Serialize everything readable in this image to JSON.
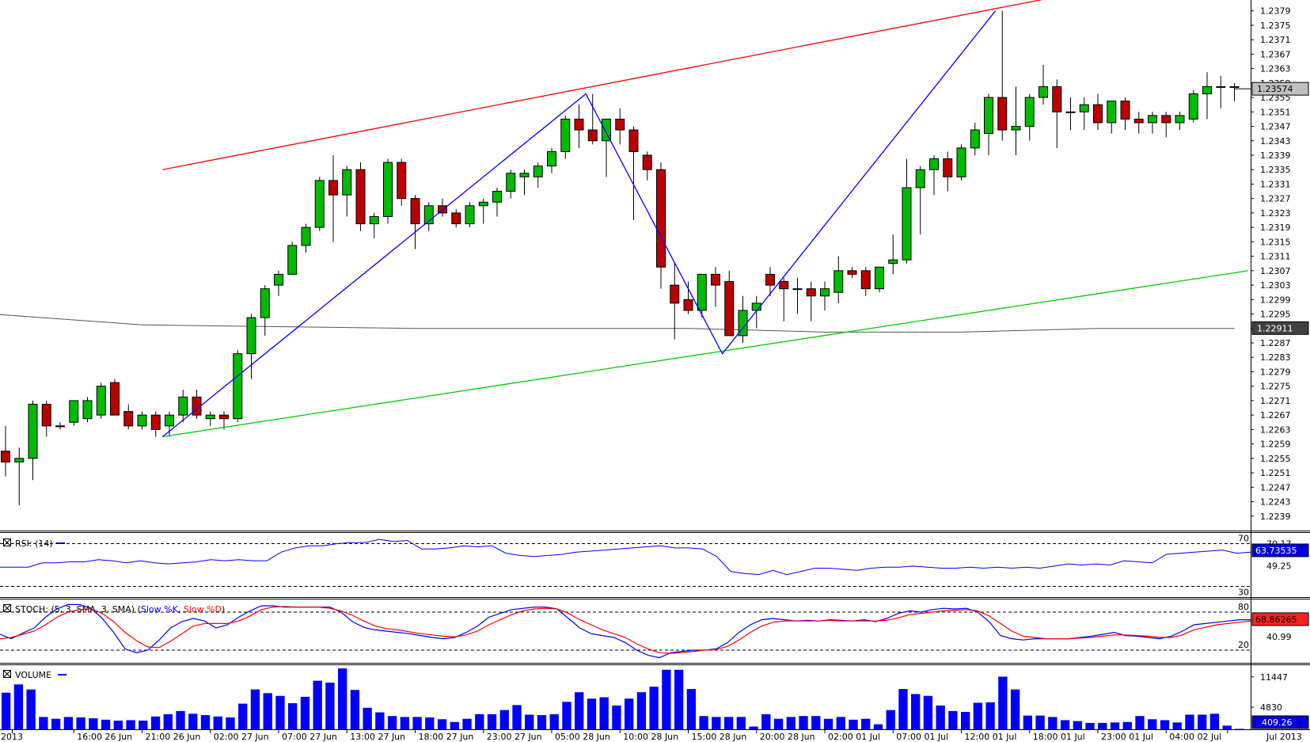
{
  "chart_data": [
    {
      "type": "candlestick",
      "name": "main",
      "ylim": [
        1.2235,
        1.2382
      ],
      "y_ticks": [
        "1.2379",
        "1.2375",
        "1.2371",
        "1.2367",
        "1.2363",
        "1.2359",
        "1.2355",
        "1.2351",
        "1.2347",
        "1.2343",
        "1.2339",
        "1.2335",
        "1.2331",
        "1.2327",
        "1.2323",
        "1.2319",
        "1.2315",
        "1.2311",
        "1.2307",
        "1.2303",
        "1.2299",
        "1.2295",
        "1.2291",
        "1.2287",
        "1.2283",
        "1.2279",
        "1.2275",
        "1.2271",
        "1.2267",
        "1.2263",
        "1.2259",
        "1.2255",
        "1.2251",
        "1.2247",
        "1.2243",
        "1.2239"
      ],
      "x_labels": [
        {
          "i": 0.5,
          "text": "2013"
        },
        {
          "i": 5,
          "text": "16:00 26 Jun"
        },
        {
          "i": 10,
          "text": "21:00 26 Jun"
        },
        {
          "i": 15,
          "text": "02:00 27 Jun"
        },
        {
          "i": 20,
          "text": "07:00 27 Jun"
        },
        {
          "i": 25,
          "text": "13:00 27 Jun"
        },
        {
          "i": 30,
          "text": "18:00 27 Jun"
        },
        {
          "i": 35,
          "text": "23:00 27 Jun"
        },
        {
          "i": 40,
          "text": "05:00 28 Jun"
        },
        {
          "i": 45,
          "text": "10:00 28 Jun"
        },
        {
          "i": 50,
          "text": "15:00 28 Jun"
        },
        {
          "i": 55,
          "text": "20:00 28 Jun"
        },
        {
          "i": 60,
          "text": "02:00 01 Jul"
        },
        {
          "i": 65,
          "text": "07:00 01 Jul"
        },
        {
          "i": 70,
          "text": "12:00 01 Jul"
        },
        {
          "i": 75,
          "text": "18:00 01 Jul"
        },
        {
          "i": 80,
          "text": "23:00 01 Jul"
        },
        {
          "i": 85,
          "text": "04:00 02 Jul"
        },
        {
          "i": 89.5,
          "text": "Jul 2013"
        }
      ],
      "candles": [
        [
          1.2257,
          1.2264,
          1.225,
          1.2254
        ],
        [
          1.2254,
          1.2258,
          1.2242,
          1.2255
        ],
        [
          1.2255,
          1.2271,
          1.2249,
          1.227
        ],
        [
          1.227,
          1.2271,
          1.2261,
          1.2264
        ],
        [
          1.2264,
          1.2265,
          1.2263,
          1.2264
        ],
        [
          1.2265,
          1.2271,
          1.2264,
          1.2271
        ],
        [
          1.2266,
          1.2272,
          1.2265,
          1.2271
        ],
        [
          1.2267,
          1.2276,
          1.2266,
          1.2275
        ],
        [
          1.2276,
          1.2277,
          1.2267,
          1.2267
        ],
        [
          1.2268,
          1.227,
          1.2263,
          1.2264
        ],
        [
          1.2264,
          1.2268,
          1.2263,
          1.2267
        ],
        [
          1.2267,
          1.2268,
          1.2261,
          1.2263
        ],
        [
          1.2264,
          1.2268,
          1.2261,
          1.2267
        ],
        [
          1.2267,
          1.2274,
          1.2265,
          1.2272
        ],
        [
          1.2272,
          1.2274,
          1.2266,
          1.2267
        ],
        [
          1.2266,
          1.2268,
          1.2264,
          1.2267
        ],
        [
          1.2267,
          1.2268,
          1.2263,
          1.2266
        ],
        [
          1.2266,
          1.2285,
          1.2265,
          1.2284
        ],
        [
          1.2284,
          1.2295,
          1.2277,
          1.2294
        ],
        [
          1.2294,
          1.2303,
          1.2289,
          1.2302
        ],
        [
          1.2303,
          1.2307,
          1.23,
          1.2306
        ],
        [
          1.2306,
          1.2315,
          1.2306,
          1.2314
        ],
        [
          1.2314,
          1.232,
          1.2312,
          1.2319
        ],
        [
          1.2319,
          1.2333,
          1.2318,
          1.2332
        ],
        [
          1.2332,
          1.2339,
          1.2315,
          1.2328
        ],
        [
          1.2328,
          1.2336,
          1.2322,
          1.2335
        ],
        [
          1.2335,
          1.2337,
          1.2318,
          1.232
        ],
        [
          1.232,
          1.2323,
          1.2316,
          1.2322
        ],
        [
          1.2322,
          1.2338,
          1.232,
          1.2337
        ],
        [
          1.2337,
          1.2338,
          1.2325,
          1.2327
        ],
        [
          1.2327,
          1.2328,
          1.2313,
          1.232
        ],
        [
          1.232,
          1.2326,
          1.2318,
          1.2325
        ],
        [
          1.2325,
          1.2327,
          1.2322,
          1.2323
        ],
        [
          1.2323,
          1.2324,
          1.2319,
          1.232
        ],
        [
          1.232,
          1.2326,
          1.2319,
          1.2325
        ],
        [
          1.2325,
          1.2327,
          1.232,
          1.2326
        ],
        [
          1.2326,
          1.233,
          1.2322,
          1.2329
        ],
        [
          1.2329,
          1.2335,
          1.2327,
          1.2334
        ],
        [
          1.2333,
          1.2335,
          1.2328,
          1.2334
        ],
        [
          1.2333,
          1.2337,
          1.233,
          1.2336
        ],
        [
          1.2336,
          1.2341,
          1.2334,
          1.234
        ],
        [
          1.234,
          1.235,
          1.2338,
          1.2349
        ],
        [
          1.2349,
          1.2353,
          1.2341,
          1.2346
        ],
        [
          1.2346,
          1.2356,
          1.2342,
          1.2343
        ],
        [
          1.2343,
          1.2349,
          1.2333,
          1.2349
        ],
        [
          1.2349,
          1.2352,
          1.2342,
          1.2346
        ],
        [
          1.2346,
          1.2347,
          1.2321,
          1.234
        ],
        [
          1.2339,
          1.234,
          1.2332,
          1.2335
        ],
        [
          1.2335,
          1.2337,
          1.2302,
          1.2308
        ],
        [
          1.2303,
          1.2309,
          1.2288,
          1.2298
        ],
        [
          1.2299,
          1.2304,
          1.2295,
          1.2296
        ],
        [
          1.2296,
          1.2306,
          1.2294,
          1.2306
        ],
        [
          1.2306,
          1.2308,
          1.2297,
          1.2303
        ],
        [
          1.2304,
          1.2307,
          1.2289,
          1.2289
        ],
        [
          1.2289,
          1.23,
          1.2287,
          1.2296
        ],
        [
          1.2296,
          1.23,
          1.2291,
          1.2298
        ],
        [
          1.2306,
          1.2308,
          1.23,
          1.2303
        ],
        [
          1.2304,
          1.2305,
          1.2293,
          1.2302
        ],
        [
          1.2302,
          1.2305,
          1.2295,
          1.2302
        ],
        [
          1.2302,
          1.2304,
          1.2293,
          1.23
        ],
        [
          1.23,
          1.2304,
          1.2296,
          1.2302
        ],
        [
          1.2301,
          1.2311,
          1.2298,
          1.2307
        ],
        [
          1.2307,
          1.2308,
          1.2305,
          1.2306
        ],
        [
          1.2307,
          1.2308,
          1.23,
          1.2302
        ],
        [
          1.2302,
          1.2308,
          1.2301,
          1.2308
        ],
        [
          1.2309,
          1.2317,
          1.2306,
          1.231
        ],
        [
          1.231,
          1.2338,
          1.2309,
          1.233
        ],
        [
          1.233,
          1.2336,
          1.2317,
          1.2335
        ],
        [
          1.2335,
          1.2339,
          1.2328,
          1.2338
        ],
        [
          1.2338,
          1.234,
          1.2329,
          1.2333
        ],
        [
          1.2333,
          1.2342,
          1.2332,
          1.2341
        ],
        [
          1.2341,
          1.2348,
          1.2339,
          1.2346
        ],
        [
          1.2345,
          1.2356,
          1.2339,
          1.2355
        ],
        [
          1.2355,
          1.2379,
          1.2343,
          1.2346
        ],
        [
          1.2346,
          1.2358,
          1.2339,
          1.2347
        ],
        [
          1.2347,
          1.2356,
          1.2343,
          1.2355
        ],
        [
          1.2355,
          1.2364,
          1.2353,
          1.2358
        ],
        [
          1.2358,
          1.236,
          1.2341,
          1.2351
        ],
        [
          1.2351,
          1.2355,
          1.2346,
          1.2351
        ],
        [
          1.2351,
          1.2355,
          1.2346,
          1.2353
        ],
        [
          1.2353,
          1.2356,
          1.2346,
          1.2348
        ],
        [
          1.2348,
          1.2354,
          1.2345,
          1.2354
        ],
        [
          1.2354,
          1.2355,
          1.2346,
          1.2349
        ],
        [
          1.2349,
          1.2351,
          1.2345,
          1.2348
        ],
        [
          1.2348,
          1.2351,
          1.2345,
          1.235
        ],
        [
          1.235,
          1.2351,
          1.2344,
          1.2348
        ],
        [
          1.2348,
          1.2351,
          1.2346,
          1.235
        ],
        [
          1.2349,
          1.2357,
          1.2348,
          1.2356
        ],
        [
          1.2356,
          1.2362,
          1.2349,
          1.2358
        ],
        [
          1.2358,
          1.2361,
          1.2352,
          1.2358
        ],
        [
          1.2358,
          1.2359,
          1.2354,
          1.2358
        ]
      ],
      "moving_average": [
        [
          -1,
          1.2295
        ],
        [
          10,
          1.2292
        ],
        [
          30,
          1.2291
        ],
        [
          50,
          1.2291
        ],
        [
          60,
          1.229
        ],
        [
          70,
          1.229
        ],
        [
          80,
          1.2291
        ],
        [
          90,
          1.2291
        ]
      ],
      "trendlines": [
        {
          "color": "#ff0000",
          "points": [
            [
              11.5,
              1.2335
            ],
            [
              78.5,
              1.2384
            ]
          ]
        },
        {
          "color": "#00cc00",
          "points": [
            [
              11.5,
              1.2261
            ],
            [
              91,
              1.2307
            ]
          ]
        }
      ],
      "zigzag": {
        "color": "#0000ff",
        "points": [
          [
            11.5,
            1.2261
          ],
          [
            42.5,
            1.2356
          ],
          [
            52.5,
            1.2284
          ],
          [
            72.5,
            1.2379
          ]
        ]
      },
      "current_price_label": "1.23574",
      "ma_price_label": "1.22911"
    },
    {
      "type": "line",
      "name": "rsi",
      "title": "RSI: (14)",
      "ylim": [
        20,
        80
      ],
      "levels": [
        70,
        30
      ],
      "level_labels": [
        "70",
        "30"
      ],
      "tick_label": "49.25",
      "value_label": "63.73535",
      "top_label": "70.17",
      "series": [
        {
          "color": "#0000ff",
          "values": [
            48,
            48,
            48,
            52,
            52,
            53,
            53,
            55,
            54,
            52,
            54,
            52,
            51,
            52,
            53,
            55,
            54,
            55,
            54,
            54,
            62,
            66,
            68,
            68,
            70,
            71,
            71,
            74,
            72,
            73,
            65,
            65,
            66,
            68,
            67,
            68,
            61,
            59,
            58,
            59,
            60,
            62,
            63,
            64,
            65,
            66,
            67,
            68,
            66,
            66,
            65,
            58,
            44,
            42,
            41,
            45,
            41,
            44,
            47,
            47,
            46,
            45,
            47,
            48,
            48,
            49,
            48,
            47,
            47,
            48,
            47,
            48,
            47,
            48,
            47,
            49,
            51,
            50,
            51,
            50,
            54,
            53,
            52,
            60,
            61,
            62,
            63,
            64,
            61,
            62
          ]
        }
      ]
    },
    {
      "type": "line",
      "name": "stoch",
      "title_parts": [
        "STOCH: (5, 3, SMA, 3, SMA) (",
        "Slow %K",
        ", ",
        "Slow %D",
        ")"
      ],
      "ylim": [
        0,
        100
      ],
      "levels": [
        80,
        20
      ],
      "level_labels": [
        "80",
        "20"
      ],
      "tick_label": "40.99",
      "value_label": "68.86265",
      "series": [
        {
          "name": "Slow %K",
          "color": "#0000ff",
          "values": [
            45,
            38,
            47,
            55,
            72,
            85,
            92,
            92,
            86,
            70,
            48,
            22,
            16,
            20,
            36,
            55,
            65,
            70,
            66,
            55,
            60,
            72,
            82,
            90,
            90,
            88,
            88,
            88,
            88,
            88,
            80,
            65,
            56,
            52,
            50,
            48,
            46,
            43,
            40,
            38,
            40,
            48,
            58,
            72,
            78,
            84,
            86,
            88,
            88,
            85,
            70,
            55,
            46,
            43,
            40,
            32,
            20,
            12,
            8,
            16,
            18,
            20,
            20,
            22,
            32,
            48,
            60,
            68,
            70,
            68,
            66,
            67,
            66,
            68,
            67,
            66,
            68,
            65,
            70,
            78,
            82,
            80,
            84,
            86,
            85,
            86,
            80,
            65,
            43,
            38,
            36,
            38,
            38,
            38,
            38,
            40,
            42,
            45,
            48,
            43,
            42,
            40,
            38,
            42,
            50,
            60,
            62,
            64,
            66,
            68,
            68
          ]
        },
        {
          "name": "Slow %D",
          "color": "#ff0000",
          "values": [
            38,
            40,
            45,
            50,
            60,
            72,
            80,
            84,
            85,
            78,
            65,
            48,
            35,
            25,
            24,
            34,
            46,
            58,
            62,
            62,
            62,
            66,
            74,
            84,
            88,
            89,
            88,
            88,
            88,
            86,
            82,
            75,
            66,
            58,
            54,
            52,
            49,
            46,
            44,
            42,
            41,
            44,
            50,
            60,
            68,
            76,
            82,
            85,
            86,
            85,
            78,
            68,
            60,
            52,
            46,
            40,
            30,
            22,
            16,
            15,
            16,
            18,
            20,
            21,
            26,
            36,
            48,
            58,
            64,
            66,
            66,
            66,
            66,
            67,
            66,
            66,
            66,
            66,
            67,
            71,
            76,
            78,
            80,
            82,
            83,
            84,
            82,
            74,
            62,
            50,
            42,
            40,
            38,
            38,
            38,
            39,
            40,
            42,
            44,
            44,
            43,
            42,
            40,
            40,
            44,
            52,
            56,
            60,
            62,
            64,
            66
          ]
        }
      ]
    },
    {
      "type": "bar",
      "name": "volume",
      "title": "VOLUME",
      "ylim": [
        0,
        14000
      ],
      "tick_labels": [
        "11447",
        "4830"
      ],
      "tick_values": [
        11447,
        4830
      ],
      "value_label": "409.26",
      "values": [
        8000,
        9800,
        8700,
        2700,
        2300,
        2700,
        2600,
        2400,
        2100,
        1900,
        2000,
        1900,
        2800,
        3300,
        4000,
        3400,
        3100,
        2800,
        2600,
        5600,
        8700,
        7900,
        7300,
        5700,
        7100,
        10600,
        10200,
        13300,
        8600,
        4700,
        3700,
        2900,
        2700,
        2700,
        2600,
        2200,
        1600,
        2300,
        3300,
        3300,
        4200,
        5300,
        3200,
        3100,
        3300,
        6000,
        8100,
        6700,
        7000,
        5200,
        6700,
        8100,
        9300,
        13000,
        13000,
        8800,
        2900,
        2700,
        2700,
        2700,
        600,
        3300,
        2300,
        2700,
        2900,
        2900,
        2300,
        2700,
        2100,
        2300,
        1100,
        4200,
        8800,
        7700,
        7300,
        5200,
        4000,
        3800,
        5800,
        5900,
        11500,
        8700,
        3000,
        3000,
        2700,
        2000,
        1800,
        1400,
        1400,
        1500,
        1600,
        2900,
        2200,
        2000,
        1500,
        3200,
        3200,
        3400,
        800,
        100
      ]
    }
  ]
}
